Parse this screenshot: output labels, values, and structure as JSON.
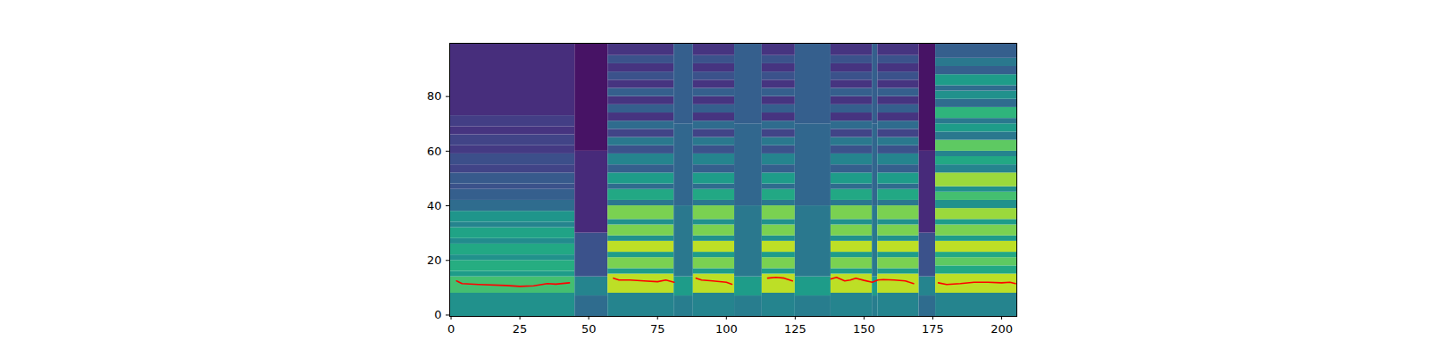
{
  "chart_data": {
    "type": "heatmap",
    "xlim": [
      -0.5,
      205.5
    ],
    "xticks": [
      0,
      25,
      50,
      75,
      100,
      125,
      150,
      175,
      200
    ],
    "ylim": [
      -0.5,
      99.5
    ],
    "yticks": [
      0,
      20,
      40,
      60,
      80
    ],
    "cells": {
      "color_range": [
        0,
        1
      ],
      "profiles": [
        [
          [
            -0.5,
            7,
            0.35
          ],
          [
            7,
            14,
            0.45
          ],
          [
            14,
            30,
            0.25
          ],
          [
            30,
            60,
            0.12
          ],
          [
            60,
            99.5,
            0.05
          ]
        ],
        [
          [
            -0.5,
            7,
            0.42
          ],
          [
            7,
            14,
            0.55
          ],
          [
            14,
            40,
            0.4
          ],
          [
            40,
            70,
            0.33
          ],
          [
            70,
            99.5,
            0.3
          ]
        ],
        [
          [
            -0.5,
            8,
            0.5
          ],
          [
            8,
            14,
            0.7
          ],
          [
            14,
            16,
            0.55
          ],
          [
            16,
            20,
            0.62
          ],
          [
            20,
            22,
            0.5
          ],
          [
            22,
            26,
            0.6
          ],
          [
            26,
            28,
            0.48
          ],
          [
            28,
            32,
            0.58
          ],
          [
            32,
            34,
            0.45
          ],
          [
            34,
            38,
            0.52
          ],
          [
            38,
            42,
            0.35
          ],
          [
            42,
            46,
            0.3
          ],
          [
            46,
            48,
            0.25
          ],
          [
            48,
            52,
            0.28
          ],
          [
            52,
            55,
            0.2
          ],
          [
            55,
            59,
            0.24
          ],
          [
            59,
            62,
            0.17
          ],
          [
            62,
            66,
            0.2
          ],
          [
            66,
            69,
            0.15
          ],
          [
            69,
            73,
            0.18
          ],
          [
            73,
            99.5,
            0.13
          ]
        ],
        [
          [
            -0.5,
            8,
            0.45
          ],
          [
            8,
            15,
            0.9
          ],
          [
            15,
            17,
            0.55
          ],
          [
            17,
            21,
            0.8
          ],
          [
            21,
            23,
            0.55
          ],
          [
            23,
            27,
            0.9
          ],
          [
            27,
            29,
            0.5
          ],
          [
            29,
            33,
            0.8
          ],
          [
            33,
            35,
            0.5
          ],
          [
            35,
            40,
            0.8
          ],
          [
            40,
            42,
            0.4
          ],
          [
            42,
            46,
            0.6
          ],
          [
            46,
            48,
            0.35
          ],
          [
            48,
            52,
            0.55
          ],
          [
            52,
            55,
            0.3
          ],
          [
            55,
            59,
            0.45
          ],
          [
            59,
            62,
            0.25
          ],
          [
            62,
            65,
            0.4
          ],
          [
            65,
            68,
            0.2
          ],
          [
            68,
            71,
            0.35
          ],
          [
            71,
            74,
            0.15
          ],
          [
            74,
            77,
            0.3
          ],
          [
            77,
            80,
            0.15
          ],
          [
            80,
            83,
            0.3
          ],
          [
            83,
            86,
            0.15
          ],
          [
            86,
            89,
            0.25
          ],
          [
            89,
            92,
            0.15
          ],
          [
            92,
            95,
            0.25
          ],
          [
            95,
            99.5,
            0.15
          ]
        ],
        [
          [
            -0.5,
            8,
            0.45
          ],
          [
            8,
            15,
            0.9
          ],
          [
            15,
            18,
            0.6
          ],
          [
            18,
            21,
            0.75
          ],
          [
            21,
            23,
            0.6
          ],
          [
            23,
            27,
            0.9
          ],
          [
            27,
            29,
            0.55
          ],
          [
            29,
            33,
            0.8
          ],
          [
            33,
            35,
            0.55
          ],
          [
            35,
            39,
            0.85
          ],
          [
            39,
            42,
            0.5
          ],
          [
            42,
            45,
            0.7
          ],
          [
            45,
            47,
            0.5
          ],
          [
            47,
            52,
            0.85
          ],
          [
            52,
            55,
            0.45
          ],
          [
            55,
            58,
            0.6
          ],
          [
            58,
            60,
            0.45
          ],
          [
            60,
            64,
            0.75
          ],
          [
            64,
            67,
            0.4
          ],
          [
            67,
            70,
            0.55
          ],
          [
            70,
            72,
            0.4
          ],
          [
            72,
            76,
            0.65
          ],
          [
            76,
            79,
            0.35
          ],
          [
            79,
            82,
            0.5
          ],
          [
            82,
            84,
            0.35
          ],
          [
            84,
            88,
            0.55
          ],
          [
            88,
            91,
            0.3
          ],
          [
            91,
            94,
            0.4
          ],
          [
            94,
            99.5,
            0.3
          ]
        ]
      ],
      "segments": [
        [
          -0.5,
          45,
          2
        ],
        [
          45,
          57,
          0
        ],
        [
          57,
          81,
          3
        ],
        [
          81,
          88,
          1
        ],
        [
          88,
          103,
          3
        ],
        [
          103,
          113,
          1
        ],
        [
          113,
          125,
          3
        ],
        [
          125,
          138,
          1
        ],
        [
          138,
          153,
          3
        ],
        [
          153,
          155,
          1
        ],
        [
          155,
          170,
          3
        ],
        [
          170,
          176,
          0
        ],
        [
          176,
          205.5,
          4
        ]
      ]
    },
    "series": [
      {
        "type": "line",
        "color": "red",
        "x": [
          2,
          4,
          10,
          20,
          25,
          30,
          35,
          38,
          43,
          44,
          59,
          61,
          65,
          70,
          75,
          78,
          81,
          82,
          89,
          91,
          95,
          100,
          102,
          103,
          115,
          118,
          121,
          124,
          125,
          138,
          140,
          143,
          145,
          147,
          150,
          153,
          155,
          157,
          161,
          165,
          168,
          169,
          177,
          180,
          185,
          190,
          195,
          200,
          203,
          205
        ],
        "values": [
          12.5,
          11.5,
          11.2,
          10.8,
          10.5,
          10.7,
          11.5,
          11.3,
          11.8,
          null,
          13.5,
          12.8,
          12.8,
          12.5,
          12.2,
          12.8,
          12,
          null,
          13.5,
          12.8,
          12.5,
          12,
          11.3,
          null,
          13.5,
          13.8,
          13.5,
          12.5,
          null,
          13.2,
          13.8,
          12.5,
          12.8,
          13.5,
          12.7,
          12,
          12.8,
          13,
          12.8,
          12.5,
          11.5,
          null,
          11.8,
          11.2,
          11.5,
          12,
          12,
          11.8,
          12,
          11.5
        ]
      }
    ]
  }
}
